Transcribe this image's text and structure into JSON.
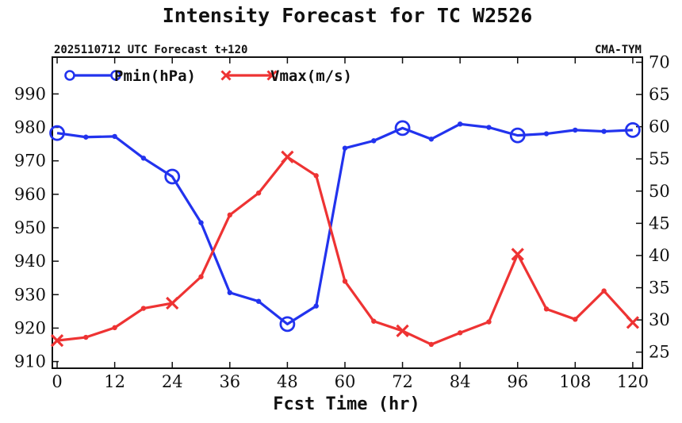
{
  "chart_data": {
    "type": "line",
    "title": "Intensity Forecast for TC W2526",
    "subtitle_left": "2025110712 UTC Forecast t+120",
    "subtitle_right": "CMA-TYM",
    "xlabel": "Fcst Time (hr)",
    "xlim": [
      -1,
      122
    ],
    "xticks": [
      0,
      12,
      24,
      36,
      48,
      60,
      72,
      84,
      96,
      108,
      120
    ],
    "y_left": {
      "ylim": [
        908,
        1001
      ],
      "ticks": [
        910,
        920,
        930,
        940,
        950,
        960,
        970,
        980,
        990
      ]
    },
    "y_right": {
      "ylim": [
        22.5,
        70.8
      ],
      "ticks": [
        25,
        30,
        35,
        40,
        45,
        50,
        55,
        60,
        65,
        70
      ]
    },
    "series": [
      {
        "name": "Pmin(hPa)",
        "axis": "left",
        "color": "#2233ee",
        "marker": "circle",
        "x": [
          0,
          6,
          12,
          18,
          24,
          30,
          36,
          42,
          48,
          54,
          60,
          66,
          72,
          78,
          84,
          90,
          96,
          102,
          108,
          114,
          120
        ],
        "values": [
          978.3,
          977.1,
          977.3,
          970.8,
          965.3,
          951.5,
          930.6,
          928.0,
          921.2,
          926.6,
          973.8,
          976.0,
          979.8,
          976.5,
          981.0,
          980.0,
          977.6,
          978.1,
          979.2,
          978.8,
          979.2
        ],
        "marker_x": [
          0,
          24,
          48,
          72,
          96,
          120
        ]
      },
      {
        "name": "Vmax(m/s)",
        "axis": "right",
        "color": "#ee3333",
        "marker": "x",
        "x": [
          0,
          6,
          12,
          18,
          24,
          30,
          36,
          42,
          48,
          54,
          60,
          66,
          72,
          78,
          84,
          90,
          96,
          102,
          108,
          114,
          120
        ],
        "values": [
          26.8,
          27.3,
          28.8,
          31.8,
          32.6,
          36.7,
          46.3,
          49.7,
          55.3,
          52.4,
          36.0,
          29.8,
          28.3,
          26.2,
          28.0,
          29.7,
          40.2,
          31.7,
          30.1,
          34.5,
          29.6
        ],
        "marker_x": [
          0,
          24,
          48,
          72,
          96,
          120
        ]
      }
    ]
  }
}
